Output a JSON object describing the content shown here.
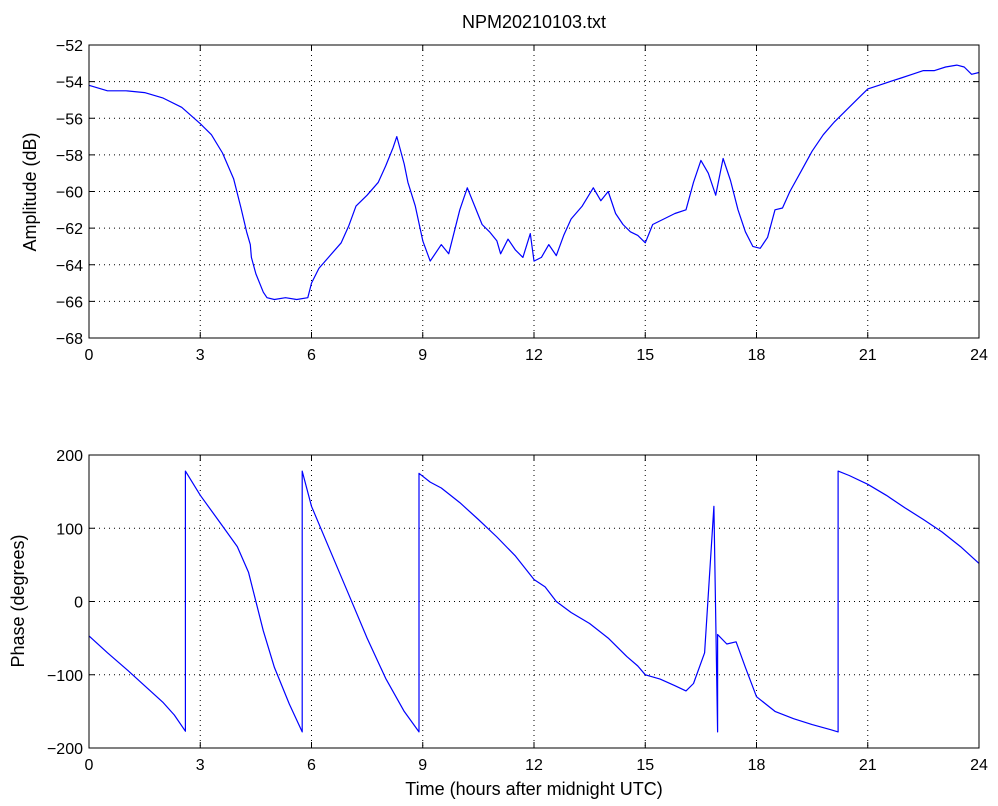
{
  "chart_data": [
    {
      "type": "line",
      "title": "NPM20210103.txt",
      "xlabel": "",
      "ylabel": "Amplitude (dB)",
      "xlim": [
        0,
        24
      ],
      "ylim": [
        -68,
        -52
      ],
      "xticks": [
        "0",
        "3",
        "6",
        "9",
        "12",
        "15",
        "18",
        "21",
        "24"
      ],
      "yticks": [
        "-68",
        "-66",
        "-64",
        "-62",
        "-60",
        "-58",
        "-56",
        "-54",
        "-52"
      ],
      "grid": true,
      "color": "#0000ff",
      "series": [
        {
          "x": [
            0,
            0.5,
            1.0,
            1.5,
            2.0,
            2.5,
            3.0,
            3.3,
            3.6,
            3.9,
            4.1,
            4.25,
            4.35,
            4.38,
            4.5,
            4.7,
            4.8,
            5.0,
            5.3,
            5.6,
            5.9,
            6.0,
            6.2,
            6.5,
            6.8,
            7.0,
            7.2,
            7.5,
            7.8,
            8.0,
            8.2,
            8.3,
            8.5,
            8.6,
            8.8,
            9.0,
            9.2,
            9.5,
            9.7,
            10.0,
            10.2,
            10.4,
            10.6,
            10.8,
            11.0,
            11.1,
            11.3,
            11.5,
            11.7,
            11.9,
            12.0,
            12.2,
            12.4,
            12.6,
            12.8,
            13.0,
            13.3,
            13.6,
            13.8,
            14.0,
            14.2,
            14.4,
            14.6,
            14.8,
            15.0,
            15.2,
            15.5,
            15.8,
            16.1,
            16.3,
            16.5,
            16.7,
            16.9,
            17.1,
            17.3,
            17.5,
            17.7,
            17.9,
            18.1,
            18.3,
            18.5,
            18.7,
            18.9,
            19.2,
            19.5,
            19.8,
            20.1,
            20.4,
            20.7,
            21.0,
            21.3,
            21.6,
            21.9,
            22.2,
            22.5,
            22.8,
            23.1,
            23.4,
            23.6,
            23.8,
            24.0
          ],
          "y": [
            -54.2,
            -54.5,
            -54.5,
            -54.6,
            -54.9,
            -55.4,
            -56.3,
            -56.9,
            -57.9,
            -59.3,
            -60.9,
            -62.2,
            -62.9,
            -63.6,
            -64.5,
            -65.5,
            -65.8,
            -65.9,
            -65.8,
            -65.9,
            -65.8,
            -65.0,
            -64.2,
            -63.5,
            -62.8,
            -61.9,
            -60.8,
            -60.2,
            -59.5,
            -58.6,
            -57.6,
            -57.0,
            -58.5,
            -59.5,
            -60.8,
            -62.7,
            -63.8,
            -62.9,
            -63.4,
            -61.0,
            -59.8,
            -60.8,
            -61.8,
            -62.2,
            -62.7,
            -63.4,
            -62.6,
            -63.2,
            -63.6,
            -62.3,
            -63.8,
            -63.6,
            -62.9,
            -63.5,
            -62.4,
            -61.5,
            -60.8,
            -59.8,
            -60.5,
            -60.0,
            -61.2,
            -61.8,
            -62.2,
            -62.4,
            -62.8,
            -61.8,
            -61.5,
            -61.2,
            -61.0,
            -59.5,
            -58.3,
            -59.0,
            -60.2,
            -58.2,
            -59.4,
            -61.0,
            -62.2,
            -63.0,
            -63.1,
            -62.5,
            -61.0,
            -60.9,
            -60.0,
            -58.9,
            -57.8,
            -56.9,
            -56.2,
            -55.6,
            -55.0,
            -54.4,
            -54.2,
            -54.0,
            -53.8,
            -53.6,
            -53.4,
            -53.4,
            -53.2,
            -53.1,
            -53.2,
            -53.6,
            -53.5
          ]
        }
      ]
    },
    {
      "type": "line",
      "title": "",
      "xlabel": "Time (hours after midnight UTC)",
      "ylabel": "Phase (degrees)",
      "xlim": [
        0,
        24
      ],
      "ylim": [
        -200,
        200
      ],
      "xticks": [
        "0",
        "3",
        "6",
        "9",
        "12",
        "15",
        "18",
        "21",
        "24"
      ],
      "yticks": [
        "-200",
        "-100",
        "0",
        "100",
        "200"
      ],
      "grid": true,
      "color": "#0000ff",
      "series": [
        {
          "x": [
            0,
            0.5,
            1.0,
            1.5,
            2.0,
            2.3,
            2.6,
            2.6,
            3.0,
            3.5,
            4.0,
            4.3,
            4.5,
            4.7,
            5.0,
            5.4,
            5.75,
            5.75,
            6.0,
            6.5,
            7.0,
            7.5,
            8.0,
            8.5,
            8.9,
            8.9,
            9.2,
            9.5,
            10.0,
            10.5,
            11.0,
            11.5,
            12.0,
            12.3,
            12.6,
            13.0,
            13.5,
            14.0,
            14.5,
            14.8,
            15.0,
            15.4,
            15.8,
            16.1,
            16.3,
            16.6,
            16.85,
            16.95,
            16.95,
            17.2,
            17.45,
            17.7,
            18.0,
            18.5,
            19.0,
            19.5,
            20.0,
            20.2,
            20.2,
            20.5,
            21.0,
            21.5,
            22.0,
            22.5,
            23.0,
            23.5,
            24.0
          ],
          "y": [
            -47,
            -70,
            -92,
            -115,
            -138,
            -155,
            -177,
            178,
            145,
            110,
            75,
            40,
            0,
            -40,
            -90,
            -140,
            -178,
            178,
            130,
            70,
            10,
            -50,
            -105,
            -150,
            -178,
            175,
            163,
            155,
            135,
            112,
            88,
            62,
            30,
            20,
            0,
            -15,
            -30,
            -50,
            -75,
            -88,
            -100,
            -106,
            -115,
            -122,
            -112,
            -70,
            130,
            -178,
            -45,
            -58,
            -55,
            -90,
            -130,
            -150,
            -160,
            -168,
            -175,
            -178,
            178,
            172,
            160,
            145,
            128,
            112,
            95,
            75,
            52
          ]
        }
      ]
    }
  ]
}
